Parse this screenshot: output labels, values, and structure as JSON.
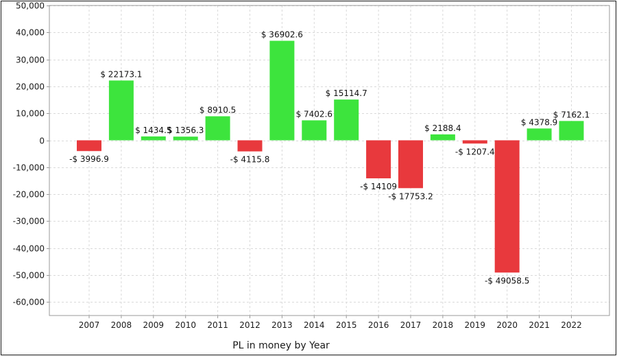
{
  "chart_data": {
    "type": "bar",
    "title": "",
    "xlabel": "PL in money by Year",
    "ylabel": "",
    "categories": [
      "2007",
      "2008",
      "2009",
      "2010",
      "2011",
      "2012",
      "2013",
      "2014",
      "2015",
      "2016",
      "2017",
      "2018",
      "2019",
      "2020",
      "2021",
      "2022"
    ],
    "values": [
      -3996.9,
      22173.1,
      1434.5,
      1356.3,
      8910.5,
      -4115.8,
      36902.6,
      7402.6,
      15114.7,
      -14109,
      -17753.2,
      2188.4,
      -1207.4,
      -49058.5,
      4378.9,
      7162.1
    ],
    "value_labels": [
      "-$ 3996.9",
      "$ 22173.1",
      "$ 1434.5",
      "$ 1356.3",
      "$ 8910.5",
      "-$ 4115.8",
      "$ 36902.6",
      "$ 7402.6",
      "$ 15114.7",
      "-$ 14109",
      "-$ 17753.2",
      "$ 2188.4",
      "-$ 1207.4",
      "-$ 49058.5",
      "$ 4378.9",
      "$ 7162.1"
    ],
    "ylim": [
      -65000,
      50000
    ],
    "yticks": [
      50000,
      40000,
      30000,
      20000,
      10000,
      0,
      -10000,
      -20000,
      -30000,
      -40000,
      -50000,
      -60000
    ],
    "ytick_labels": [
      "50,000",
      "40,000",
      "30,000",
      "20,000",
      "10,000",
      "0",
      "-10,000",
      "-20,000",
      "-30,000",
      "-40,000",
      "-50,000",
      "-60,000"
    ],
    "grid": true,
    "legend": "none",
    "colors": {
      "positive": "#3de43d",
      "negative": "#e8393d",
      "grid": "#d9d9d9",
      "axis": "#9a9a9a",
      "text": "#1a1a1a"
    }
  }
}
